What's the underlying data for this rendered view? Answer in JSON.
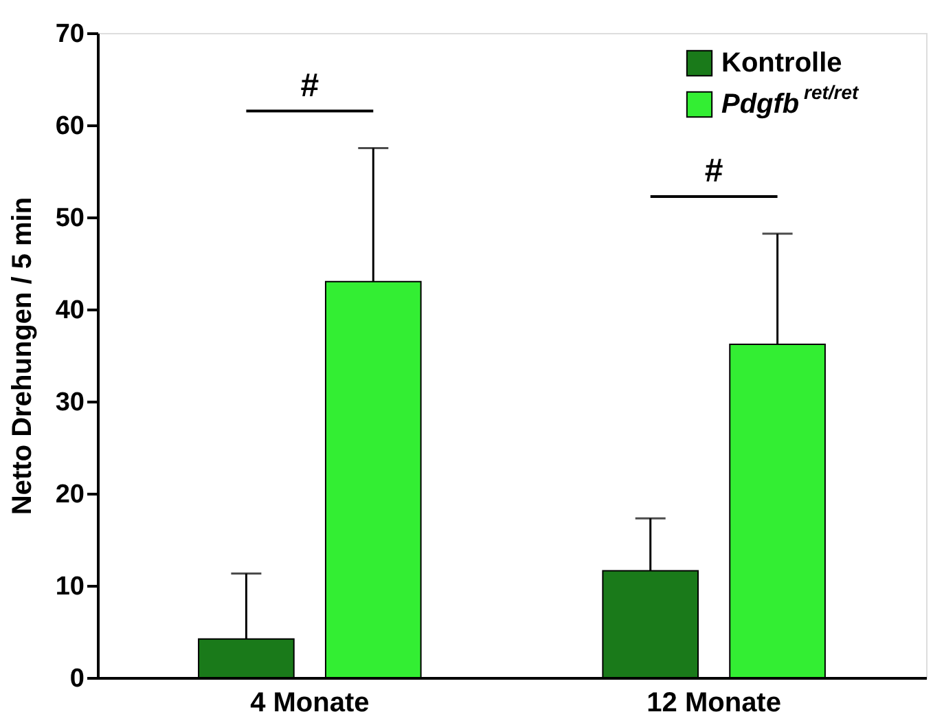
{
  "chart_data": {
    "type": "bar",
    "ylabel": "Netto Drehungen / 5 min",
    "categories": [
      "4 Monate",
      "12 Monate"
    ],
    "series": [
      {
        "name": "Kontrolle",
        "color": "#1a7a1a",
        "values": [
          4.2,
          11.6
        ],
        "errors": [
          [
            4.2,
            11.3
          ],
          [
            11.6,
            17.3
          ]
        ]
      },
      {
        "name": "Pdgfb$^{ret/ret}$",
        "color": "#33ee33",
        "values": [
          43.0,
          36.2
        ],
        "errors": [
          [
            43.0,
            57.5
          ],
          [
            36.2,
            48.2
          ]
        ]
      }
    ],
    "annotations": [
      "#",
      "#"
    ],
    "ylim": [
      0,
      70
    ],
    "yticks": [
      0,
      10,
      20,
      30,
      40,
      50,
      60,
      70
    ],
    "grid": false,
    "legend": "top right"
  }
}
